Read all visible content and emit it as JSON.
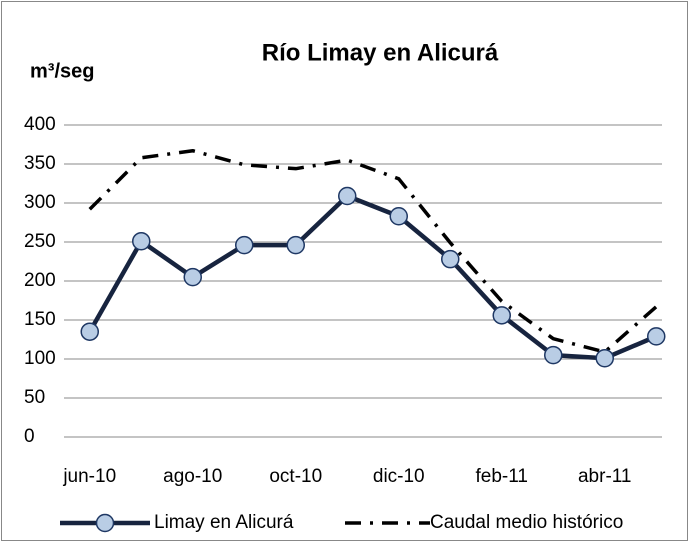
{
  "chart_data": {
    "type": "line",
    "title": "Río Limay en Alicurá",
    "y_label": "m³/seg",
    "categories": [
      "jun-10",
      null,
      "ago-10",
      null,
      "oct-10",
      null,
      "dic-10",
      null,
      "feb-11",
      null,
      "abr-11",
      null
    ],
    "series": [
      {
        "name": "Limay en Alicurá",
        "color": "#17243f",
        "marker_color": "#b9cde5",
        "style": "solid",
        "values": [
          135,
          251,
          205,
          246,
          246,
          309,
          283,
          228,
          156,
          105,
          101,
          129
        ]
      },
      {
        "name": "Caudal medio histórico",
        "color": "#000000",
        "style": "dashdot",
        "values": [
          292,
          358,
          367,
          349,
          344,
          355,
          331,
          249,
          174,
          126,
          109,
          167
        ]
      }
    ],
    "ylim": [
      0,
      400
    ],
    "yticks": [
      0,
      50,
      100,
      150,
      200,
      250,
      300,
      350,
      400
    ],
    "grid": true,
    "legend": "bottom"
  }
}
